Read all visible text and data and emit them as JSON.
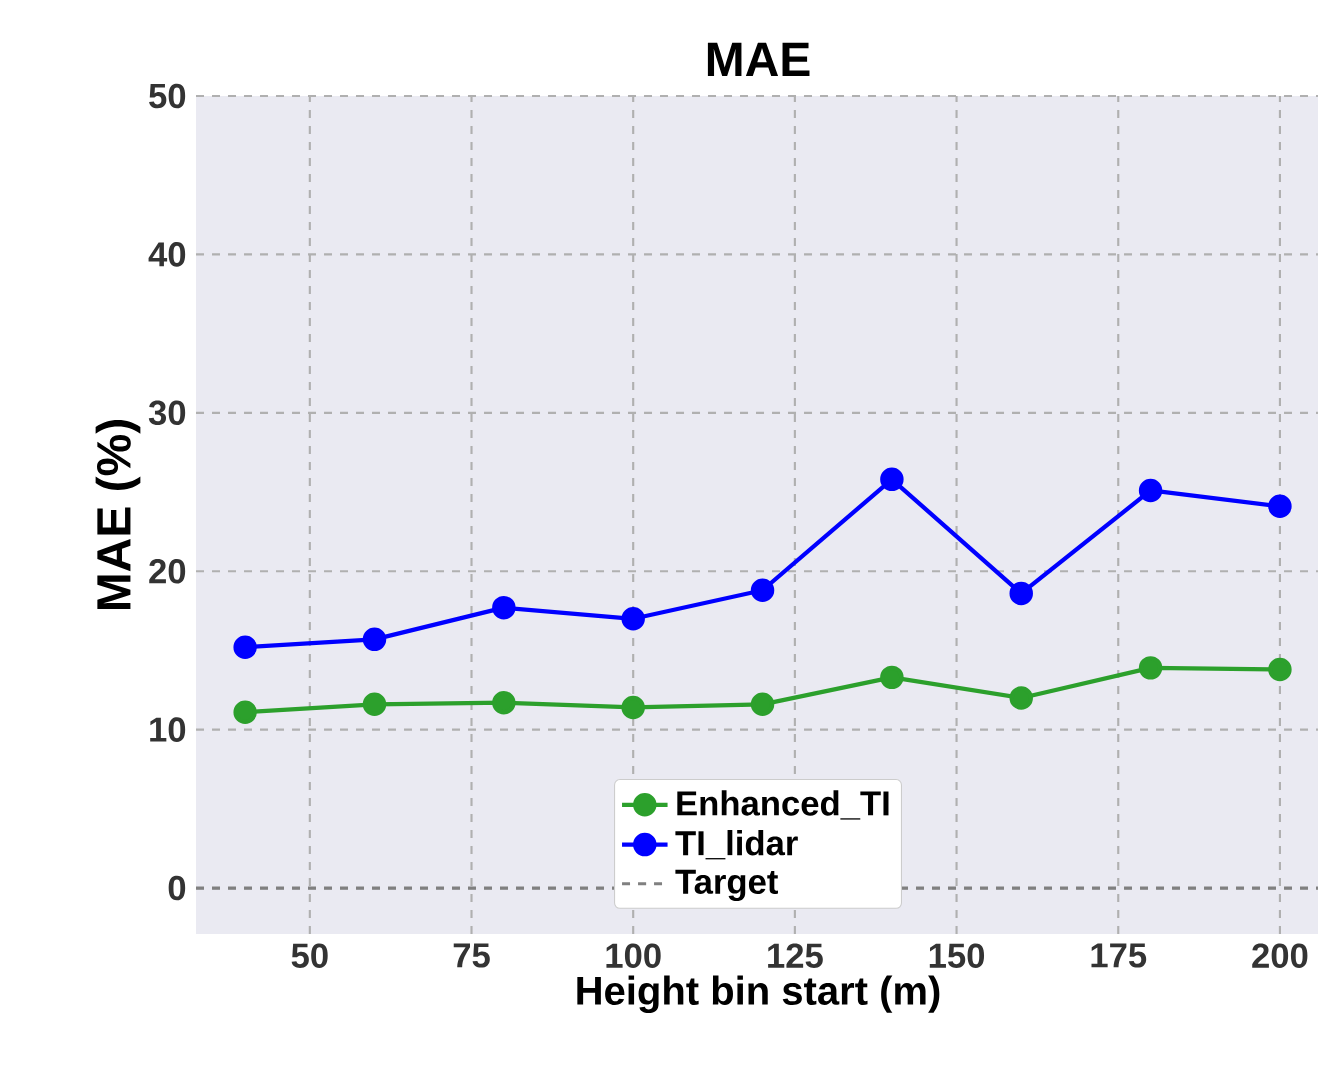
{
  "chart_data": {
    "type": "line",
    "title": "MAE",
    "xlabel": "Height bin start (m)",
    "ylabel": "MAE (%)",
    "x": [
      40,
      60,
      80,
      100,
      120,
      140,
      160,
      180,
      200
    ],
    "series": [
      {
        "name": "Enhanced_TI",
        "color": "#2ca02c",
        "values": [
          11.1,
          11.6,
          11.7,
          11.4,
          11.6,
          13.3,
          12.0,
          13.9,
          13.8
        ]
      },
      {
        "name": "TI_lidar",
        "color": "#0000ff",
        "values": [
          15.2,
          15.7,
          17.7,
          17.0,
          18.8,
          25.8,
          18.6,
          25.1,
          24.1
        ]
      }
    ],
    "ref_lines": [
      {
        "axis": "y",
        "value": 0,
        "label": "Target",
        "color": "#808080",
        "line_style": "dashed"
      }
    ],
    "xlim": [
      32.4,
      206.2
    ],
    "ylim": [
      -2.9,
      50
    ],
    "xticks": [
      50,
      75,
      100,
      125,
      150,
      175,
      200
    ],
    "yticks": [
      0,
      10,
      20,
      30,
      40,
      50
    ],
    "grid": true,
    "legend": "bottom",
    "marker": "circle",
    "line_style": "solid"
  }
}
